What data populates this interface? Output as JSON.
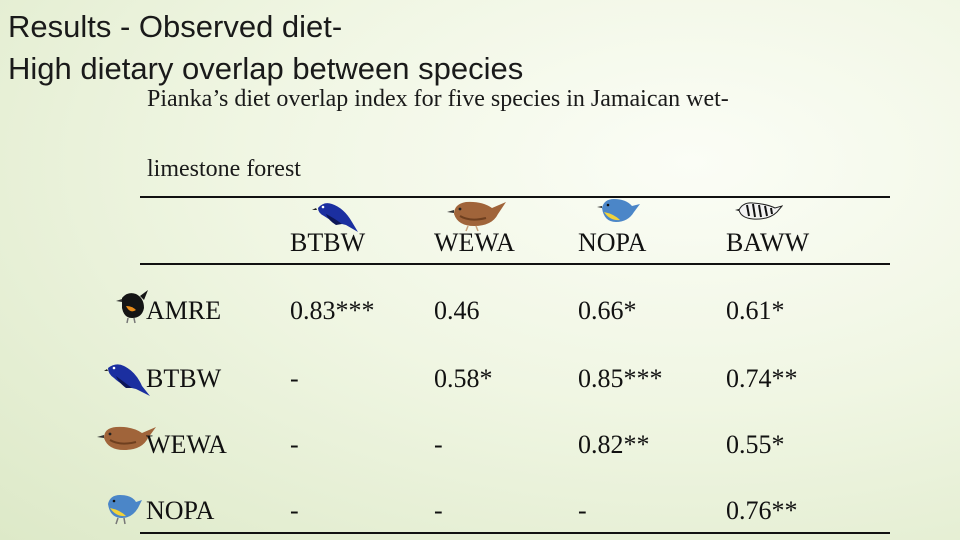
{
  "slide": {
    "title_line1": "Results - Observed diet-",
    "title_line2": "High dietary overlap between species",
    "caption_line1": "Pianka’s diet overlap index for five species in Jamaican wet-",
    "caption_line2": "limestone forest"
  },
  "table": {
    "columns": [
      "BTBW",
      "WEWA",
      "NOPA",
      "BAWW"
    ],
    "rows": [
      {
        "label": "AMRE",
        "values": [
          "0.83***",
          "0.46",
          "0.66*",
          "0.61*"
        ]
      },
      {
        "label": "BTBW",
        "values": [
          "-",
          "0.58*",
          "0.85***",
          "0.74**"
        ]
      },
      {
        "label": "WEWA",
        "values": [
          "-",
          "-",
          "0.82**",
          "0.55*"
        ]
      },
      {
        "label": "NOPA",
        "values": [
          "-",
          "-",
          "-",
          "0.76**"
        ]
      }
    ]
  },
  "colors": {
    "btbw": "#1b2fa0",
    "wewa": "#a0643a",
    "nopa": "#4b86c8",
    "amre": "#e88b1a"
  }
}
